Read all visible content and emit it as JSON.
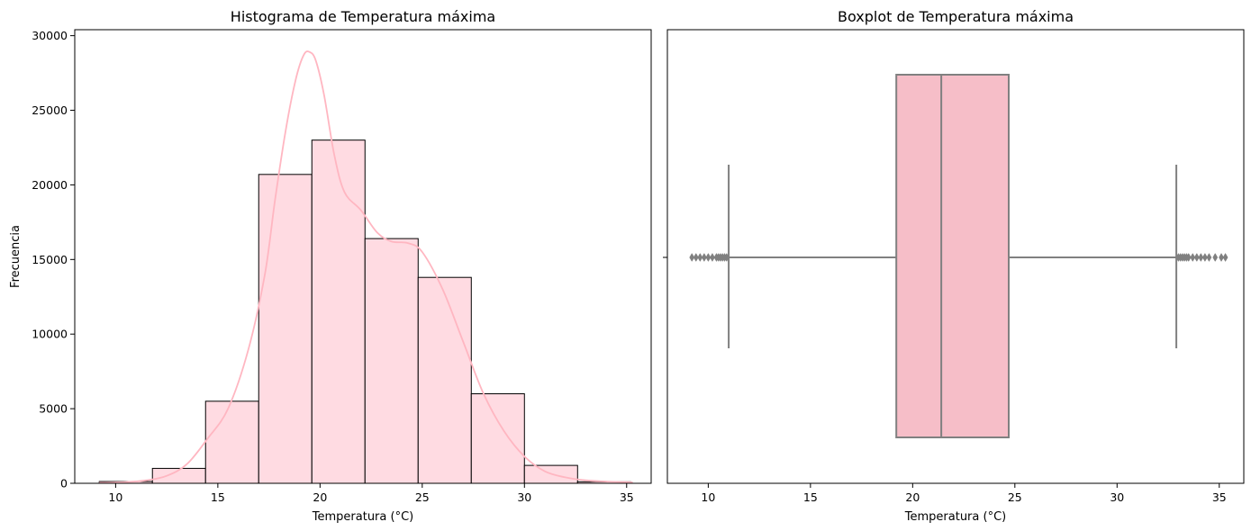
{
  "chart_data": [
    {
      "type": "bar",
      "title": "Histograma de Temperatura máxima",
      "xlabel": "Temperatura (°C)",
      "ylabel": "Frecuencia",
      "xlim": [
        8,
        36.2
      ],
      "ylim": [
        0,
        30400
      ],
      "xticks": [
        10,
        15,
        20,
        25,
        30,
        35
      ],
      "yticks": [
        0,
        5000,
        10000,
        15000,
        20000,
        25000,
        30000
      ],
      "bins": [
        {
          "x0": 9.2,
          "x1": 11.8,
          "count": 120
        },
        {
          "x0": 11.8,
          "x1": 14.4,
          "count": 1000
        },
        {
          "x0": 14.4,
          "x1": 17.0,
          "count": 5500
        },
        {
          "x0": 17.0,
          "x1": 19.6,
          "count": 20700
        },
        {
          "x0": 19.6,
          "x1": 22.2,
          "count": 23000
        },
        {
          "x0": 22.2,
          "x1": 24.8,
          "count": 16400
        },
        {
          "x0": 24.8,
          "x1": 27.4,
          "count": 13800
        },
        {
          "x0": 27.4,
          "x1": 30.0,
          "count": 6000
        },
        {
          "x0": 30.0,
          "x1": 32.6,
          "count": 1200
        },
        {
          "x0": 32.6,
          "x1": 35.2,
          "count": 100
        }
      ],
      "kde": [
        [
          9.2,
          40
        ],
        [
          10.5,
          80
        ],
        [
          11.5,
          200
        ],
        [
          12.5,
          500
        ],
        [
          13.5,
          1300
        ],
        [
          14.5,
          3000
        ],
        [
          15.5,
          5000
        ],
        [
          16.5,
          9000
        ],
        [
          17.3,
          14000
        ],
        [
          17.8,
          19000
        ],
        [
          18.3,
          23500
        ],
        [
          18.8,
          27000
        ],
        [
          19.2,
          28700
        ],
        [
          19.5,
          28900
        ],
        [
          19.8,
          28300
        ],
        [
          20.2,
          26000
        ],
        [
          20.7,
          22000
        ],
        [
          21.2,
          19500
        ],
        [
          22.0,
          18300
        ],
        [
          22.8,
          16800
        ],
        [
          23.5,
          16200
        ],
        [
          24.3,
          16100
        ],
        [
          25.0,
          15500
        ],
        [
          26.0,
          13000
        ],
        [
          27.0,
          9500
        ],
        [
          28.0,
          6000
        ],
        [
          29.0,
          3500
        ],
        [
          30.0,
          1800
        ],
        [
          31.0,
          800
        ],
        [
          32.0,
          400
        ],
        [
          33.0,
          200
        ],
        [
          34.0,
          120
        ],
        [
          35.3,
          60
        ]
      ],
      "colors": {
        "bar_fill": "#ffdbe2",
        "bar_edge": "#000000",
        "kde": "#ffb6c1"
      }
    },
    {
      "type": "boxplot",
      "title": "Boxplot de Temperatura máxima",
      "xlabel": "Temperatura (°C)",
      "xlim": [
        8,
        36.2
      ],
      "xticks": [
        10,
        15,
        20,
        25,
        30,
        35
      ],
      "box": {
        "whisker_low": 11.0,
        "q1": 19.2,
        "median": 21.4,
        "q3": 24.7,
        "whisker_high": 32.9
      },
      "outliers_low": [
        9.2,
        9.4,
        9.6,
        9.8,
        10.0,
        10.2,
        10.4,
        10.5,
        10.6,
        10.7,
        10.8,
        10.9
      ],
      "outliers_high": [
        33.0,
        33.1,
        33.2,
        33.3,
        33.4,
        33.5,
        33.7,
        33.9,
        34.1,
        34.3,
        34.5,
        34.8,
        35.1,
        35.3
      ],
      "colors": {
        "box_fill": "#f6bec8",
        "lines": "#808080"
      }
    }
  ]
}
